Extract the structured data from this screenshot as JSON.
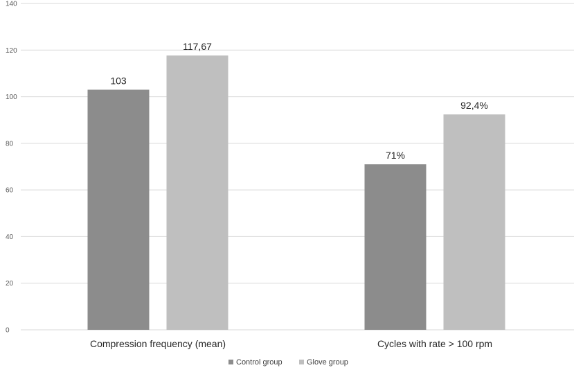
{
  "chart_data": {
    "type": "bar",
    "title": "",
    "xlabel": "",
    "ylabel": "",
    "ylim": [
      0,
      140
    ],
    "yticks": [
      0,
      20,
      40,
      60,
      80,
      100,
      120,
      140
    ],
    "grid": true,
    "legend_position": "bottom",
    "categories": [
      "Compression frequency (mean)",
      "Cycles with rate > 100 rpm"
    ],
    "series": [
      {
        "name": "Control group",
        "color": "#8c8c8c",
        "values": [
          103,
          71
        ],
        "labels": [
          "103",
          "71%"
        ]
      },
      {
        "name": "Glove group",
        "color": "#bfbfbf",
        "values": [
          117.67,
          92.4
        ],
        "labels": [
          "117,67",
          "92,4%"
        ]
      }
    ]
  }
}
